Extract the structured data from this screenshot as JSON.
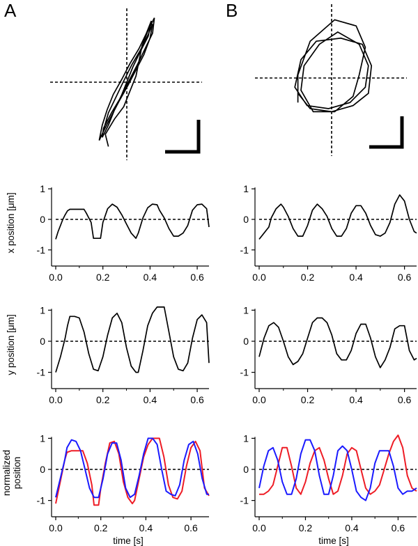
{
  "figure": {
    "panel_labels": [
      "A",
      "B"
    ]
  },
  "colors": {
    "trace": "#000000",
    "red": "#ee1c25",
    "blue": "#1a1aff"
  },
  "chart_data": [
    {
      "panel": "A",
      "type": "xy-trajectory",
      "title": "",
      "xy": [
        [
          -0.3,
          -1.05
        ],
        [
          -0.35,
          -0.85
        ],
        [
          -0.2,
          -0.6
        ],
        [
          -0.05,
          -0.4
        ],
        [
          0.05,
          -0.15
        ],
        [
          0.15,
          0.1
        ],
        [
          0.2,
          0.35
        ],
        [
          0.25,
          0.6
        ],
        [
          0.35,
          0.85
        ],
        [
          0.45,
          1.05
        ],
        [
          0.42,
          0.8
        ],
        [
          0.3,
          0.55
        ],
        [
          0.18,
          0.3
        ],
        [
          0.05,
          0.05
        ],
        [
          -0.08,
          -0.2
        ],
        [
          -0.2,
          -0.45
        ],
        [
          -0.3,
          -0.7
        ],
        [
          -0.4,
          -0.9
        ],
        [
          -0.38,
          -0.75
        ],
        [
          -0.25,
          -0.5
        ],
        [
          -0.1,
          -0.25
        ],
        [
          0.0,
          0.0
        ],
        [
          0.1,
          0.25
        ],
        [
          0.22,
          0.5
        ],
        [
          0.35,
          0.75
        ],
        [
          0.4,
          1.0
        ],
        [
          0.32,
          0.8
        ],
        [
          0.2,
          0.55
        ],
        [
          0.05,
          0.3
        ],
        [
          -0.08,
          0.05
        ],
        [
          -0.22,
          -0.2
        ],
        [
          -0.32,
          -0.45
        ],
        [
          -0.4,
          -0.7
        ],
        [
          -0.45,
          -0.95
        ],
        [
          -0.38,
          -0.8
        ],
        [
          -0.25,
          -0.55
        ],
        [
          -0.12,
          -0.3
        ],
        [
          0.02,
          -0.05
        ],
        [
          0.15,
          0.2
        ],
        [
          0.28,
          0.45
        ],
        [
          0.38,
          0.72
        ],
        [
          0.42,
          0.95
        ],
        [
          0.35,
          0.78
        ],
        [
          0.22,
          0.52
        ],
        [
          0.08,
          0.28
        ],
        [
          -0.05,
          0.02
        ],
        [
          -0.18,
          -0.25
        ],
        [
          -0.3,
          -0.5
        ],
        [
          -0.38,
          -0.78
        ]
      ]
    },
    {
      "panel": "B",
      "type": "xy-trajectory",
      "title": "",
      "xy": [
        [
          -0.55,
          -0.4
        ],
        [
          -0.55,
          0.05
        ],
        [
          -0.35,
          0.6
        ],
        [
          0.05,
          0.95
        ],
        [
          0.4,
          0.85
        ],
        [
          0.55,
          0.5
        ],
        [
          0.45,
          0.05
        ],
        [
          0.35,
          -0.3
        ],
        [
          0.05,
          -0.55
        ],
        [
          -0.3,
          -0.55
        ],
        [
          -0.5,
          -0.2
        ],
        [
          -0.45,
          0.2
        ],
        [
          -0.2,
          0.55
        ],
        [
          0.1,
          0.75
        ],
        [
          0.45,
          0.55
        ],
        [
          0.6,
          0.2
        ],
        [
          0.55,
          -0.15
        ],
        [
          0.3,
          -0.4
        ],
        [
          -0.05,
          -0.5
        ],
        [
          -0.4,
          -0.45
        ],
        [
          -0.6,
          -0.15
        ],
        [
          -0.5,
          0.3
        ],
        [
          -0.25,
          0.6
        ],
        [
          0.15,
          0.65
        ],
        [
          0.5,
          0.55
        ],
        [
          0.65,
          0.2
        ],
        [
          0.6,
          -0.25
        ],
        [
          0.35,
          -0.45
        ],
        [
          0.0,
          -0.55
        ],
        [
          -0.35,
          -0.5
        ],
        [
          -0.55,
          -0.25
        ]
      ]
    },
    {
      "panel": "A",
      "type": "line",
      "title": "",
      "ylabel": "x position [μm]",
      "xlabel": "",
      "xlim": [
        0,
        0.65
      ],
      "ylim": [
        -1.3,
        1.3
      ],
      "xticks": [
        "0.0",
        "0.2",
        "0.4",
        "0.6"
      ],
      "yticks": [
        "1",
        "0",
        "-1"
      ],
      "series": [
        {
          "name": "x",
          "color": "black",
          "x": [
            0,
            0.01,
            0.02,
            0.03,
            0.04,
            0.05,
            0.06,
            0.08,
            0.1,
            0.12,
            0.13,
            0.15,
            0.16,
            0.18,
            0.19,
            0.2,
            0.22,
            0.24,
            0.26,
            0.28,
            0.3,
            0.32,
            0.34,
            0.35,
            0.37,
            0.39,
            0.41,
            0.43,
            0.44,
            0.46,
            0.48,
            0.5,
            0.52,
            0.54,
            0.56,
            0.58,
            0.6,
            0.62,
            0.64,
            0.65
          ],
          "y": [
            -0.65,
            -0.4,
            -0.2,
            0.0,
            0.15,
            0.28,
            0.33,
            0.33,
            0.33,
            0.33,
            0.2,
            -0.1,
            -0.62,
            -0.62,
            -0.62,
            -0.1,
            0.35,
            0.5,
            0.4,
            0.15,
            -0.15,
            -0.45,
            -0.62,
            -0.45,
            0.05,
            0.38,
            0.5,
            0.48,
            0.3,
            0.05,
            -0.3,
            -0.55,
            -0.55,
            -0.45,
            -0.2,
            0.3,
            0.48,
            0.5,
            0.35,
            -0.25
          ]
        }
      ]
    },
    {
      "panel": "B",
      "type": "line",
      "title": "",
      "ylabel": "",
      "xlabel": "",
      "xlim": [
        0,
        0.65
      ],
      "ylim": [
        -1.3,
        1.3
      ],
      "xticks": [
        "0.0",
        "0.2",
        "0.4",
        "0.6"
      ],
      "yticks": [
        "1",
        "0",
        "-1"
      ],
      "series": [
        {
          "name": "x",
          "color": "black",
          "x": [
            0,
            0.02,
            0.04,
            0.05,
            0.07,
            0.09,
            0.1,
            0.12,
            0.14,
            0.16,
            0.18,
            0.2,
            0.22,
            0.24,
            0.26,
            0.28,
            0.3,
            0.32,
            0.34,
            0.36,
            0.38,
            0.4,
            0.42,
            0.44,
            0.46,
            0.48,
            0.5,
            0.52,
            0.54,
            0.56,
            0.58,
            0.6,
            0.62,
            0.64,
            0.65
          ],
          "y": [
            -0.65,
            -0.45,
            -0.25,
            0.05,
            0.35,
            0.5,
            0.4,
            0.1,
            -0.3,
            -0.55,
            -0.55,
            -0.2,
            0.3,
            0.5,
            0.35,
            0.1,
            -0.3,
            -0.55,
            -0.55,
            -0.3,
            0.2,
            0.45,
            0.45,
            0.2,
            -0.2,
            -0.5,
            -0.55,
            -0.45,
            -0.1,
            0.5,
            0.8,
            0.6,
            0.0,
            -0.4,
            -0.45
          ]
        }
      ]
    },
    {
      "panel": "A",
      "type": "line",
      "title": "",
      "ylabel": "y position [μm]",
      "xlabel": "",
      "xlim": [
        0,
        0.65
      ],
      "ylim": [
        -1.3,
        1.3
      ],
      "xticks": [
        "0.0",
        "0.2",
        "0.4",
        "0.6"
      ],
      "yticks": [
        "1",
        "0",
        "-1"
      ],
      "series": [
        {
          "name": "y",
          "color": "black",
          "x": [
            0,
            0.02,
            0.04,
            0.05,
            0.06,
            0.08,
            0.1,
            0.12,
            0.14,
            0.16,
            0.18,
            0.2,
            0.22,
            0.24,
            0.26,
            0.28,
            0.3,
            0.32,
            0.34,
            0.35,
            0.37,
            0.39,
            0.41,
            0.43,
            0.46,
            0.48,
            0.5,
            0.52,
            0.54,
            0.56,
            0.58,
            0.6,
            0.62,
            0.64,
            0.65
          ],
          "y": [
            -1.0,
            -0.5,
            0.1,
            0.5,
            0.8,
            0.8,
            0.75,
            0.3,
            -0.4,
            -0.9,
            -0.95,
            -0.5,
            0.2,
            0.75,
            0.9,
            0.6,
            -0.2,
            -0.8,
            -1.0,
            -1.0,
            -0.3,
            0.5,
            0.9,
            1.1,
            1.1,
            0.3,
            -0.5,
            -0.9,
            -0.95,
            -0.7,
            0.1,
            0.7,
            0.85,
            0.6,
            -0.7
          ]
        }
      ]
    },
    {
      "panel": "B",
      "type": "line",
      "title": "",
      "ylabel": "",
      "xlabel": "",
      "xlim": [
        0,
        0.65
      ],
      "ylim": [
        -1.3,
        1.3
      ],
      "xticks": [
        "0.0",
        "0.2",
        "0.4",
        "0.6"
      ],
      "yticks": [
        "1",
        "0",
        "-1"
      ],
      "series": [
        {
          "name": "y",
          "color": "black",
          "x": [
            0,
            0.02,
            0.04,
            0.06,
            0.08,
            0.1,
            0.12,
            0.14,
            0.16,
            0.18,
            0.2,
            0.22,
            0.24,
            0.26,
            0.28,
            0.3,
            0.32,
            0.34,
            0.36,
            0.38,
            0.4,
            0.42,
            0.44,
            0.46,
            0.48,
            0.5,
            0.52,
            0.54,
            0.56,
            0.58,
            0.6,
            0.62,
            0.64,
            0.65
          ],
          "y": [
            -0.5,
            0.1,
            0.5,
            0.6,
            0.45,
            0.0,
            -0.5,
            -0.75,
            -0.65,
            -0.4,
            0.1,
            0.6,
            0.75,
            0.75,
            0.6,
            0.2,
            -0.4,
            -0.6,
            -0.6,
            -0.3,
            0.25,
            0.55,
            0.55,
            0.1,
            -0.5,
            -0.85,
            -0.6,
            -0.2,
            0.4,
            0.5,
            0.5,
            -0.3,
            -0.6,
            -0.55
          ]
        }
      ]
    },
    {
      "panel": "A",
      "type": "line",
      "title": "",
      "ylabel": "normalized position",
      "xlabel": "time [s]",
      "xlim": [
        0,
        0.68
      ],
      "ylim": [
        -1.3,
        1.3
      ],
      "xticks": [
        "0.0",
        "0.2",
        "0.4",
        "0.6"
      ],
      "yticks": [
        "1",
        "0",
        "-1"
      ],
      "series": [
        {
          "name": "red",
          "color": "#ee1c25",
          "x": [
            0,
            0.02,
            0.04,
            0.05,
            0.07,
            0.1,
            0.12,
            0.14,
            0.16,
            0.17,
            0.19,
            0.2,
            0.22,
            0.24,
            0.26,
            0.28,
            0.3,
            0.32,
            0.34,
            0.35,
            0.37,
            0.39,
            0.41,
            0.43,
            0.46,
            0.48,
            0.5,
            0.52,
            0.54,
            0.56,
            0.58,
            0.6,
            0.62,
            0.64,
            0.66,
            0.68
          ],
          "y": [
            -1.1,
            -0.4,
            0.3,
            0.55,
            0.6,
            0.6,
            0.6,
            0.2,
            -0.5,
            -1.15,
            -1.15,
            -0.6,
            0.2,
            0.85,
            0.9,
            0.5,
            -0.4,
            -0.9,
            -1.1,
            -1.0,
            -0.3,
            0.4,
            0.8,
            1.0,
            1.0,
            0.4,
            -0.5,
            -0.9,
            -0.95,
            -0.7,
            0.1,
            0.7,
            0.9,
            0.6,
            -0.6,
            -0.85
          ]
        },
        {
          "name": "blue",
          "color": "#1a1aff",
          "x": [
            0,
            0.02,
            0.04,
            0.05,
            0.07,
            0.09,
            0.11,
            0.13,
            0.15,
            0.17,
            0.19,
            0.21,
            0.23,
            0.25,
            0.27,
            0.29,
            0.31,
            0.33,
            0.35,
            0.37,
            0.39,
            0.41,
            0.43,
            0.45,
            0.47,
            0.49,
            0.51,
            0.53,
            0.55,
            0.57,
            0.59,
            0.61,
            0.63,
            0.65,
            0.67,
            0.68
          ],
          "y": [
            -0.9,
            -0.3,
            0.3,
            0.7,
            0.95,
            0.9,
            0.6,
            0.0,
            -0.6,
            -0.9,
            -0.9,
            -0.3,
            0.5,
            0.85,
            0.85,
            0.3,
            -0.6,
            -0.9,
            -0.8,
            -0.2,
            0.5,
            1.0,
            1.0,
            0.8,
            0.0,
            -0.7,
            -0.8,
            -0.85,
            -0.5,
            0.3,
            0.8,
            0.9,
            0.5,
            -0.3,
            -0.8,
            -0.8
          ]
        }
      ]
    },
    {
      "panel": "B",
      "type": "line",
      "title": "",
      "ylabel": "",
      "xlabel": "time [s]",
      "xlim": [
        0,
        0.68
      ],
      "ylim": [
        -1.3,
        1.3
      ],
      "xticks": [
        "0.0",
        "0.2",
        "0.4",
        "0.6"
      ],
      "yticks": [
        "1",
        "0",
        "-1"
      ],
      "series": [
        {
          "name": "red",
          "color": "#ee1c25",
          "x": [
            0,
            0.02,
            0.04,
            0.06,
            0.08,
            0.1,
            0.12,
            0.14,
            0.16,
            0.18,
            0.2,
            0.22,
            0.24,
            0.26,
            0.28,
            0.3,
            0.32,
            0.34,
            0.36,
            0.38,
            0.4,
            0.42,
            0.44,
            0.46,
            0.48,
            0.5,
            0.52,
            0.54,
            0.56,
            0.58,
            0.6,
            0.62,
            0.64,
            0.66,
            0.68
          ],
          "y": [
            -0.8,
            -0.8,
            -0.7,
            -0.5,
            0.1,
            0.7,
            0.7,
            0.1,
            -0.6,
            -0.8,
            -0.4,
            0.2,
            0.6,
            0.7,
            0.3,
            -0.3,
            -0.8,
            -0.7,
            -0.2,
            0.5,
            0.7,
            0.6,
            0.0,
            -0.6,
            -0.8,
            -0.7,
            -0.5,
            0.0,
            0.5,
            0.9,
            1.1,
            0.7,
            -0.2,
            -0.6,
            -0.7
          ]
        },
        {
          "name": "blue",
          "color": "#1a1aff",
          "x": [
            0,
            0.02,
            0.04,
            0.06,
            0.08,
            0.1,
            0.12,
            0.14,
            0.16,
            0.18,
            0.2,
            0.22,
            0.24,
            0.26,
            0.28,
            0.3,
            0.32,
            0.34,
            0.36,
            0.38,
            0.4,
            0.42,
            0.44,
            0.46,
            0.48,
            0.5,
            0.52,
            0.54,
            0.56,
            0.58,
            0.6,
            0.62,
            0.64,
            0.66,
            0.68
          ],
          "y": [
            -0.6,
            0.1,
            0.6,
            0.7,
            0.3,
            -0.4,
            -0.8,
            -0.8,
            -0.3,
            0.5,
            0.95,
            0.95,
            0.6,
            -0.2,
            -0.8,
            -0.8,
            -0.2,
            0.6,
            0.75,
            0.6,
            0.0,
            -0.7,
            -0.9,
            -1.0,
            -0.6,
            0.2,
            0.6,
            0.6,
            0.6,
            0.1,
            -0.6,
            -0.8,
            -0.7,
            -0.7,
            -0.6
          ]
        }
      ]
    }
  ]
}
